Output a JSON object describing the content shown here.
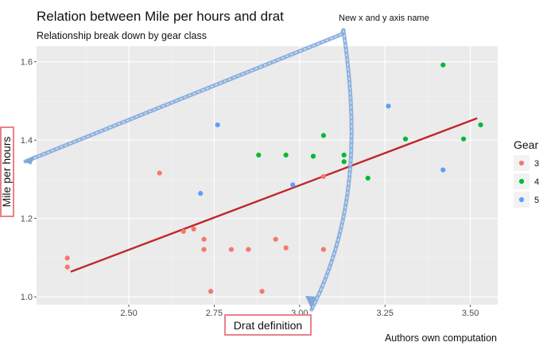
{
  "chart_data": {
    "type": "scatter",
    "title": "Relation between Mile per hours and drat",
    "subtitle": "Relationship break down by gear class",
    "xlabel": "Drat definition",
    "ylabel": "Mile per hours",
    "caption": "Authors own computation",
    "annotation": "New x and y axis name",
    "xlim": [
      2.23,
      3.58
    ],
    "ylim": [
      0.98,
      1.64
    ],
    "x_ticks": [
      2.5,
      2.75,
      3.0,
      3.25,
      3.5
    ],
    "x_tick_labels": [
      "2.50",
      "2.75",
      "3.00",
      "3.25",
      "3.50"
    ],
    "y_ticks": [
      1.0,
      1.2,
      1.4,
      1.6
    ],
    "y_tick_labels": [
      "1.0",
      "1.2",
      "1.4",
      "1.6"
    ],
    "grid": true,
    "legend": {
      "title": "Gear",
      "position": "right"
    },
    "colors": {
      "3": "#F8766D",
      "4": "#00BA38",
      "5": "#619CFF",
      "trend": "#C0272D",
      "annotation": "#7FA7DC",
      "highlight": "#E8828A"
    },
    "series": [
      {
        "name": "3",
        "x": [
          2.32,
          2.32,
          2.59,
          2.66,
          2.69,
          2.72,
          2.72,
          2.74,
          2.8,
          2.85,
          2.89,
          2.93,
          2.96,
          3.07,
          3.07
        ],
        "y": [
          1.099,
          1.076,
          1.316,
          1.167,
          1.173,
          1.147,
          1.121,
          1.014,
          1.121,
          1.121,
          1.014,
          1.147,
          1.125,
          1.121,
          1.307
        ]
      },
      {
        "name": "4",
        "x": [
          2.88,
          2.96,
          3.04,
          3.07,
          3.13,
          3.13,
          3.2,
          3.31,
          3.42,
          3.48,
          3.53
        ],
        "y": [
          1.362,
          1.362,
          1.359,
          1.412,
          1.362,
          1.345,
          1.303,
          1.403,
          1.592,
          1.403,
          1.439
        ]
      },
      {
        "name": "5",
        "x": [
          2.71,
          2.76,
          2.98,
          3.26,
          3.42
        ],
        "y": [
          1.264,
          1.439,
          1.286,
          1.487,
          1.324
        ]
      }
    ],
    "trend_line": {
      "x": [
        2.33,
        3.52
      ],
      "y": [
        1.064,
        1.456
      ]
    }
  }
}
